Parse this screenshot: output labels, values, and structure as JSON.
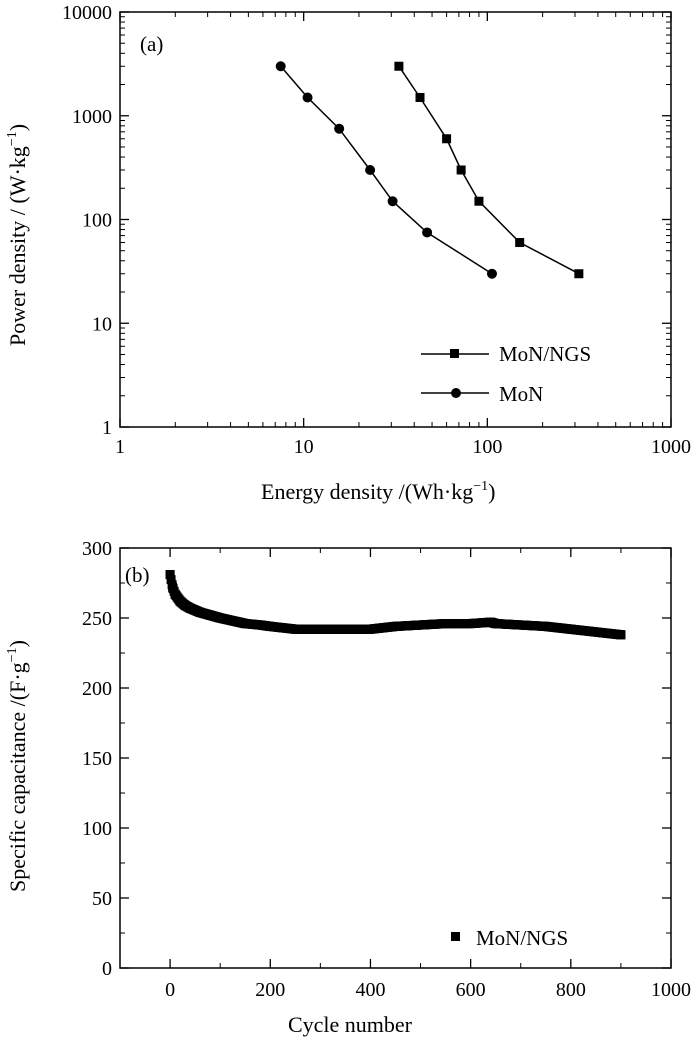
{
  "chart_data": [
    {
      "type": "line",
      "panel": "(a)",
      "xlabel": "Energy density /(Wh·kg",
      "xlabel_sup": "−1",
      "xlabel_end": ")",
      "ylabel": "Power density / (W·kg",
      "ylabel_sup": "−1",
      "ylabel_end": ")",
      "xscale": "log",
      "yscale": "log",
      "xlim": [
        1,
        1000
      ],
      "ylim": [
        1,
        10000
      ],
      "xticks": [
        1,
        10,
        100,
        1000
      ],
      "yticks": [
        1,
        10,
        100,
        1000,
        10000
      ],
      "xtick_labels": [
        "1",
        "10",
        "100",
        "1000"
      ],
      "ytick_labels": [
        "1",
        "10",
        "100",
        "1000",
        "10000"
      ],
      "legend_position": "lower-right",
      "series": [
        {
          "name": "MoN/NGS",
          "marker": "square",
          "x": [
            33,
            43,
            60,
            72,
            90,
            150,
            315
          ],
          "y": [
            3000,
            1500,
            600,
            300,
            150,
            60,
            30
          ]
        },
        {
          "name": "MoN",
          "marker": "circle",
          "x": [
            7.5,
            10.5,
            15.6,
            23,
            30.5,
            47,
            106
          ],
          "y": [
            3000,
            1500,
            750,
            300,
            150,
            75,
            30
          ]
        }
      ]
    },
    {
      "type": "scatter",
      "panel": "(b)",
      "xlabel": "Cycle number",
      "ylabel": "Specific capacitance /(F·g",
      "ylabel_sup": "−1",
      "ylabel_end": ")",
      "xlim": [
        -100,
        1000
      ],
      "ylim": [
        0,
        300
      ],
      "xticks": [
        0,
        200,
        400,
        600,
        800,
        1000
      ],
      "yticks": [
        0,
        50,
        100,
        150,
        200,
        250,
        300
      ],
      "xtick_labels": [
        "0",
        "200",
        "400",
        "600",
        "800",
        "1000"
      ],
      "ytick_labels": [
        "0",
        "50",
        "100",
        "150",
        "200",
        "250",
        "300"
      ],
      "legend_position": "lower-right",
      "series": [
        {
          "name": "MoN/NGS",
          "marker": "square",
          "x": [
            0,
            5,
            10,
            20,
            30,
            40,
            60,
            80,
            100,
            150,
            180,
            200,
            250,
            300,
            400,
            450,
            500,
            550,
            600,
            640,
            650,
            700,
            750,
            800,
            850,
            900
          ],
          "y": [
            281,
            272,
            267,
            262,
            259,
            257,
            254,
            252,
            250,
            246,
            245,
            244,
            242,
            242,
            242,
            244,
            245,
            246,
            246,
            247,
            246,
            245,
            244,
            242,
            240,
            238
          ]
        }
      ]
    }
  ]
}
